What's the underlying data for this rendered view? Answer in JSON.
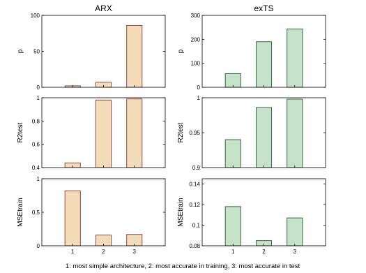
{
  "caption": "1: most simple architecture, 2: most accurate in training, 3: most accurate in test",
  "colors": {
    "arx_fill": "#f5dcb8",
    "arx_stroke": "#8a4a4a",
    "exts_fill": "#c6e3c9",
    "exts_stroke": "#2f6b3a",
    "axis": "#000000"
  },
  "chart_data": [
    {
      "type": "bar",
      "column": "ARX",
      "title": "ARX",
      "ylabel": "p",
      "categories": [
        "1",
        "2",
        "3"
      ],
      "values": [
        2,
        7,
        86
      ],
      "ylim": [
        0,
        100
      ],
      "yticks": [
        0,
        50,
        100
      ],
      "show_xticks": false,
      "grid": false
    },
    {
      "type": "bar",
      "column": "ARX",
      "title": "",
      "ylabel": "R2test",
      "categories": [
        "1",
        "2",
        "3"
      ],
      "values": [
        0.44,
        0.98,
        0.99
      ],
      "ylim": [
        0.4,
        1
      ],
      "yticks": [
        0.4,
        0.6,
        0.8,
        1
      ],
      "show_xticks": false,
      "grid": false
    },
    {
      "type": "bar",
      "column": "ARX",
      "title": "",
      "ylabel": "MSEtrain",
      "categories": [
        "1",
        "2",
        "3"
      ],
      "values": [
        0.82,
        0.16,
        0.17
      ],
      "ylim": [
        0,
        1
      ],
      "yticks": [
        0,
        0.5,
        1
      ],
      "show_xticks": true,
      "grid": false
    },
    {
      "type": "bar",
      "column": "exTS",
      "title": "exTS",
      "ylabel": "p",
      "categories": [
        "1",
        "2",
        "3"
      ],
      "values": [
        57,
        190,
        243
      ],
      "ylim": [
        0,
        300
      ],
      "yticks": [
        0,
        100,
        200,
        300
      ],
      "show_xticks": false,
      "grid": false
    },
    {
      "type": "bar",
      "column": "exTS",
      "title": "",
      "ylabel": "R2test",
      "categories": [
        "1",
        "2",
        "3"
      ],
      "values": [
        0.94,
        0.986,
        0.998
      ],
      "ylim": [
        0.9,
        1
      ],
      "yticks": [
        0.9,
        0.95,
        1
      ],
      "show_xticks": false,
      "grid": false
    },
    {
      "type": "bar",
      "column": "exTS",
      "title": "",
      "ylabel": "MSEtrain",
      "categories": [
        "1",
        "2",
        "3"
      ],
      "values": [
        0.118,
        0.085,
        0.107
      ],
      "ylim": [
        0.08,
        0.145
      ],
      "yticks": [
        0.08,
        0.1,
        0.12,
        0.14
      ],
      "show_xticks": true,
      "grid": false
    }
  ]
}
